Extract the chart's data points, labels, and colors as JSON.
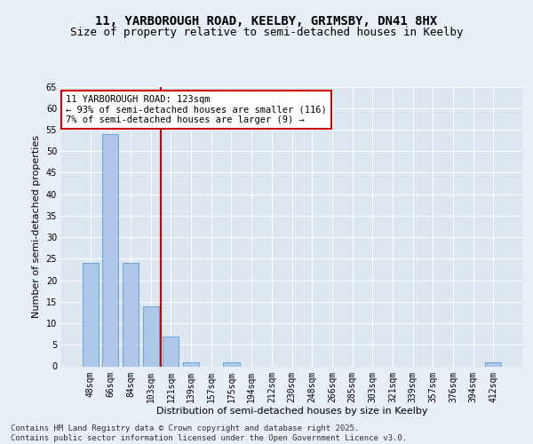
{
  "title_line1": "11, YARBOROUGH ROAD, KEELBY, GRIMSBY, DN41 8HX",
  "title_line2": "Size of property relative to semi-detached houses in Keelby",
  "xlabel": "Distribution of semi-detached houses by size in Keelby",
  "ylabel": "Number of semi-detached properties",
  "categories": [
    "48sqm",
    "66sqm",
    "84sqm",
    "103sqm",
    "121sqm",
    "139sqm",
    "157sqm",
    "175sqm",
    "194sqm",
    "212sqm",
    "230sqm",
    "248sqm",
    "266sqm",
    "285sqm",
    "303sqm",
    "321sqm",
    "339sqm",
    "357sqm",
    "376sqm",
    "394sqm",
    "412sqm"
  ],
  "values": [
    24,
    54,
    24,
    14,
    7,
    1,
    0,
    1,
    0,
    0,
    0,
    0,
    0,
    0,
    0,
    0,
    0,
    0,
    0,
    0,
    1
  ],
  "bar_color": "#aec6e8",
  "bar_edge_color": "#5a9fd4",
  "vline_x_index": 4,
  "vline_color": "#cc0000",
  "annotation_text": "11 YARBOROUGH ROAD: 123sqm\n← 93% of semi-detached houses are smaller (116)\n7% of semi-detached houses are larger (9) →",
  "annotation_box_color": "#ffffff",
  "annotation_box_edge_color": "#cc0000",
  "ylim": [
    0,
    65
  ],
  "yticks": [
    0,
    5,
    10,
    15,
    20,
    25,
    30,
    35,
    40,
    45,
    50,
    55,
    60,
    65
  ],
  "background_color": "#e8eef5",
  "plot_background_color": "#dce6f0",
  "grid_color": "#ffffff",
  "footer_text": "Contains HM Land Registry data © Crown copyright and database right 2025.\nContains public sector information licensed under the Open Government Licence v3.0.",
  "title_fontsize": 10,
  "subtitle_fontsize": 9,
  "axis_label_fontsize": 8,
  "tick_fontsize": 7,
  "annotation_fontsize": 7.5,
  "footer_fontsize": 6.5
}
